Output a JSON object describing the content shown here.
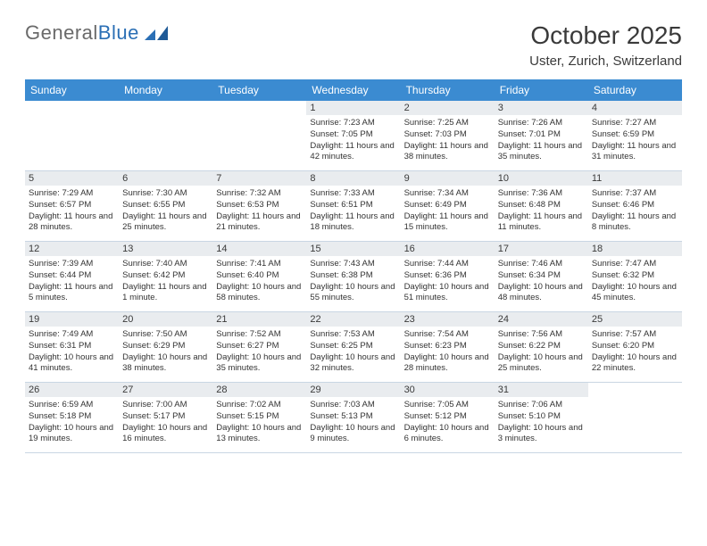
{
  "logo": {
    "word1": "General",
    "word2": "Blue"
  },
  "title": "October 2025",
  "location": "Uster, Zurich, Switzerland",
  "colors": {
    "header_bg": "#3b8bd1",
    "header_fg": "#ffffff",
    "date_bg": "#e9ecef",
    "grid_border": "#c9d6e3",
    "logo_gray": "#6a6a6a",
    "logo_blue": "#2b6fb5"
  },
  "day_names": [
    "Sunday",
    "Monday",
    "Tuesday",
    "Wednesday",
    "Thursday",
    "Friday",
    "Saturday"
  ],
  "weeks": [
    [
      {
        "date": "",
        "sunrise": "",
        "sunset": "",
        "daylight": ""
      },
      {
        "date": "",
        "sunrise": "",
        "sunset": "",
        "daylight": ""
      },
      {
        "date": "",
        "sunrise": "",
        "sunset": "",
        "daylight": ""
      },
      {
        "date": "1",
        "sunrise": "Sunrise: 7:23 AM",
        "sunset": "Sunset: 7:05 PM",
        "daylight": "Daylight: 11 hours and 42 minutes."
      },
      {
        "date": "2",
        "sunrise": "Sunrise: 7:25 AM",
        "sunset": "Sunset: 7:03 PM",
        "daylight": "Daylight: 11 hours and 38 minutes."
      },
      {
        "date": "3",
        "sunrise": "Sunrise: 7:26 AM",
        "sunset": "Sunset: 7:01 PM",
        "daylight": "Daylight: 11 hours and 35 minutes."
      },
      {
        "date": "4",
        "sunrise": "Sunrise: 7:27 AM",
        "sunset": "Sunset: 6:59 PM",
        "daylight": "Daylight: 11 hours and 31 minutes."
      }
    ],
    [
      {
        "date": "5",
        "sunrise": "Sunrise: 7:29 AM",
        "sunset": "Sunset: 6:57 PM",
        "daylight": "Daylight: 11 hours and 28 minutes."
      },
      {
        "date": "6",
        "sunrise": "Sunrise: 7:30 AM",
        "sunset": "Sunset: 6:55 PM",
        "daylight": "Daylight: 11 hours and 25 minutes."
      },
      {
        "date": "7",
        "sunrise": "Sunrise: 7:32 AM",
        "sunset": "Sunset: 6:53 PM",
        "daylight": "Daylight: 11 hours and 21 minutes."
      },
      {
        "date": "8",
        "sunrise": "Sunrise: 7:33 AM",
        "sunset": "Sunset: 6:51 PM",
        "daylight": "Daylight: 11 hours and 18 minutes."
      },
      {
        "date": "9",
        "sunrise": "Sunrise: 7:34 AM",
        "sunset": "Sunset: 6:49 PM",
        "daylight": "Daylight: 11 hours and 15 minutes."
      },
      {
        "date": "10",
        "sunrise": "Sunrise: 7:36 AM",
        "sunset": "Sunset: 6:48 PM",
        "daylight": "Daylight: 11 hours and 11 minutes."
      },
      {
        "date": "11",
        "sunrise": "Sunrise: 7:37 AM",
        "sunset": "Sunset: 6:46 PM",
        "daylight": "Daylight: 11 hours and 8 minutes."
      }
    ],
    [
      {
        "date": "12",
        "sunrise": "Sunrise: 7:39 AM",
        "sunset": "Sunset: 6:44 PM",
        "daylight": "Daylight: 11 hours and 5 minutes."
      },
      {
        "date": "13",
        "sunrise": "Sunrise: 7:40 AM",
        "sunset": "Sunset: 6:42 PM",
        "daylight": "Daylight: 11 hours and 1 minute."
      },
      {
        "date": "14",
        "sunrise": "Sunrise: 7:41 AM",
        "sunset": "Sunset: 6:40 PM",
        "daylight": "Daylight: 10 hours and 58 minutes."
      },
      {
        "date": "15",
        "sunrise": "Sunrise: 7:43 AM",
        "sunset": "Sunset: 6:38 PM",
        "daylight": "Daylight: 10 hours and 55 minutes."
      },
      {
        "date": "16",
        "sunrise": "Sunrise: 7:44 AM",
        "sunset": "Sunset: 6:36 PM",
        "daylight": "Daylight: 10 hours and 51 minutes."
      },
      {
        "date": "17",
        "sunrise": "Sunrise: 7:46 AM",
        "sunset": "Sunset: 6:34 PM",
        "daylight": "Daylight: 10 hours and 48 minutes."
      },
      {
        "date": "18",
        "sunrise": "Sunrise: 7:47 AM",
        "sunset": "Sunset: 6:32 PM",
        "daylight": "Daylight: 10 hours and 45 minutes."
      }
    ],
    [
      {
        "date": "19",
        "sunrise": "Sunrise: 7:49 AM",
        "sunset": "Sunset: 6:31 PM",
        "daylight": "Daylight: 10 hours and 41 minutes."
      },
      {
        "date": "20",
        "sunrise": "Sunrise: 7:50 AM",
        "sunset": "Sunset: 6:29 PM",
        "daylight": "Daylight: 10 hours and 38 minutes."
      },
      {
        "date": "21",
        "sunrise": "Sunrise: 7:52 AM",
        "sunset": "Sunset: 6:27 PM",
        "daylight": "Daylight: 10 hours and 35 minutes."
      },
      {
        "date": "22",
        "sunrise": "Sunrise: 7:53 AM",
        "sunset": "Sunset: 6:25 PM",
        "daylight": "Daylight: 10 hours and 32 minutes."
      },
      {
        "date": "23",
        "sunrise": "Sunrise: 7:54 AM",
        "sunset": "Sunset: 6:23 PM",
        "daylight": "Daylight: 10 hours and 28 minutes."
      },
      {
        "date": "24",
        "sunrise": "Sunrise: 7:56 AM",
        "sunset": "Sunset: 6:22 PM",
        "daylight": "Daylight: 10 hours and 25 minutes."
      },
      {
        "date": "25",
        "sunrise": "Sunrise: 7:57 AM",
        "sunset": "Sunset: 6:20 PM",
        "daylight": "Daylight: 10 hours and 22 minutes."
      }
    ],
    [
      {
        "date": "26",
        "sunrise": "Sunrise: 6:59 AM",
        "sunset": "Sunset: 5:18 PM",
        "daylight": "Daylight: 10 hours and 19 minutes."
      },
      {
        "date": "27",
        "sunrise": "Sunrise: 7:00 AM",
        "sunset": "Sunset: 5:17 PM",
        "daylight": "Daylight: 10 hours and 16 minutes."
      },
      {
        "date": "28",
        "sunrise": "Sunrise: 7:02 AM",
        "sunset": "Sunset: 5:15 PM",
        "daylight": "Daylight: 10 hours and 13 minutes."
      },
      {
        "date": "29",
        "sunrise": "Sunrise: 7:03 AM",
        "sunset": "Sunset: 5:13 PM",
        "daylight": "Daylight: 10 hours and 9 minutes."
      },
      {
        "date": "30",
        "sunrise": "Sunrise: 7:05 AM",
        "sunset": "Sunset: 5:12 PM",
        "daylight": "Daylight: 10 hours and 6 minutes."
      },
      {
        "date": "31",
        "sunrise": "Sunrise: 7:06 AM",
        "sunset": "Sunset: 5:10 PM",
        "daylight": "Daylight: 10 hours and 3 minutes."
      },
      {
        "date": "",
        "sunrise": "",
        "sunset": "",
        "daylight": ""
      }
    ]
  ]
}
